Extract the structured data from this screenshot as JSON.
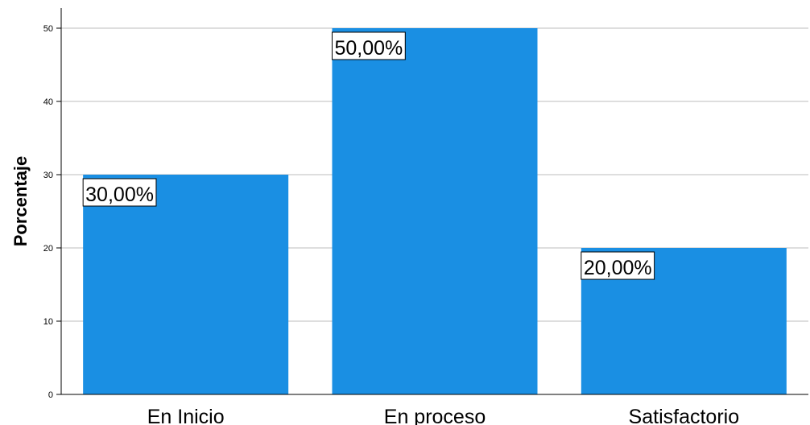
{
  "chart_data": {
    "type": "bar",
    "title": "",
    "xlabel": "",
    "ylabel": "Porcentaje",
    "categories": [
      "En Inicio",
      "En proceso",
      "Satisfactorio"
    ],
    "values": [
      30,
      50,
      20
    ],
    "data_labels": [
      "30,00%",
      "50,00%",
      "20,00%"
    ],
    "ylim": [
      0,
      52
    ],
    "yticks": [
      0,
      10,
      20,
      30,
      40,
      50
    ],
    "grid": true,
    "legend": "none",
    "bar_color": "#1a8fe3"
  }
}
